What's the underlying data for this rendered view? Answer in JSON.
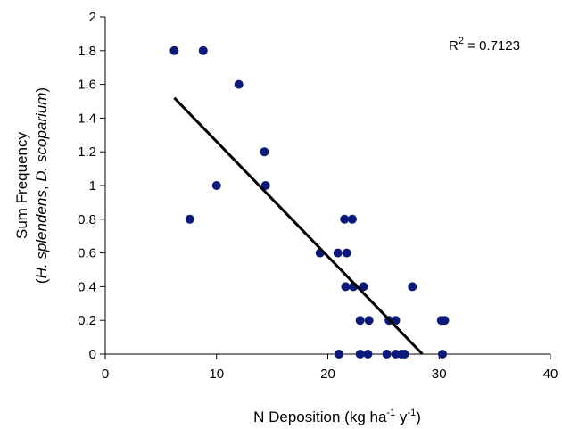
{
  "chart_data": {
    "type": "scatter",
    "xlabel": {
      "main": "N Deposition (kg ha",
      "sup1": "-1",
      "mid": " y",
      "sup2": "-1",
      "end": ")"
    },
    "ylabel": {
      "line1": "Sum Frequency",
      "line2_open": "(",
      "line2_species1": "H. splendens",
      "line2_sep": ", ",
      "line2_species2": "D. scoparium",
      "line2_close": ")"
    },
    "xlim": [
      0,
      40
    ],
    "ylim": [
      0,
      2
    ],
    "x_ticks": [
      "0",
      "10",
      "20",
      "30",
      "40"
    ],
    "y_ticks": [
      "0",
      "0.2",
      "0.4",
      "0.6",
      "0.8",
      "1",
      "1.2",
      "1.4",
      "1.6",
      "1.8",
      "2"
    ],
    "grid": false,
    "legend": "none",
    "marker_color": "#0a1a7a",
    "trendline_color": "#000000",
    "annotation": {
      "prefix": "R",
      "sup": "2",
      "suffix": " = 0.7123",
      "placement": "top-right"
    },
    "trendline": {
      "x": [
        6.2,
        28.5
      ],
      "y": [
        1.52,
        0.0
      ]
    },
    "points": [
      {
        "x": 6.2,
        "y": 1.8
      },
      {
        "x": 8.8,
        "y": 1.8
      },
      {
        "x": 12.0,
        "y": 1.6
      },
      {
        "x": 14.3,
        "y": 1.2
      },
      {
        "x": 14.4,
        "y": 1.0
      },
      {
        "x": 10.0,
        "y": 1.0
      },
      {
        "x": 7.6,
        "y": 0.8
      },
      {
        "x": 21.5,
        "y": 0.8
      },
      {
        "x": 22.2,
        "y": 0.8
      },
      {
        "x": 19.3,
        "y": 0.6
      },
      {
        "x": 20.9,
        "y": 0.6
      },
      {
        "x": 21.7,
        "y": 0.6
      },
      {
        "x": 21.6,
        "y": 0.4
      },
      {
        "x": 22.3,
        "y": 0.4
      },
      {
        "x": 23.2,
        "y": 0.4
      },
      {
        "x": 27.6,
        "y": 0.4
      },
      {
        "x": 22.9,
        "y": 0.2
      },
      {
        "x": 23.7,
        "y": 0.2
      },
      {
        "x": 25.5,
        "y": 0.2
      },
      {
        "x": 26.1,
        "y": 0.2
      },
      {
        "x": 30.2,
        "y": 0.2
      },
      {
        "x": 30.5,
        "y": 0.2
      },
      {
        "x": 21.0,
        "y": 0.0
      },
      {
        "x": 22.9,
        "y": 0.0
      },
      {
        "x": 23.6,
        "y": 0.0
      },
      {
        "x": 25.3,
        "y": 0.0
      },
      {
        "x": 26.1,
        "y": 0.0
      },
      {
        "x": 26.6,
        "y": 0.0
      },
      {
        "x": 26.9,
        "y": 0.0
      },
      {
        "x": 30.3,
        "y": 0.0
      }
    ]
  }
}
